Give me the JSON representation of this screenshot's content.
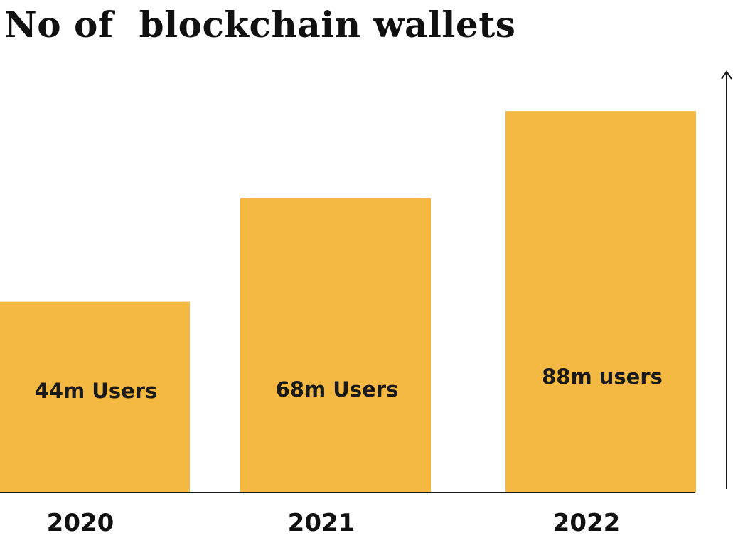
{
  "chart_data": {
    "type": "bar",
    "title": "No of  blockchain wallets",
    "categories": [
      "2020",
      "2021",
      "2022"
    ],
    "values": [
      44,
      68,
      88
    ],
    "data_labels": [
      "44m Users",
      "68m Users",
      "88m users"
    ],
    "ylim": [
      0,
      100
    ],
    "grid": false,
    "bar_color": "#F4B942",
    "axis_color": "#1a1a1a"
  }
}
